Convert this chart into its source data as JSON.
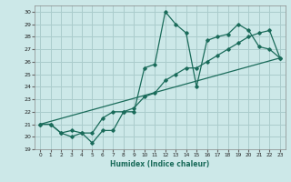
{
  "xlabel": "Humidex (Indice chaleur)",
  "ylabel": "",
  "xlim": [
    -0.5,
    23.5
  ],
  "ylim": [
    19,
    30.5
  ],
  "yticks": [
    19,
    20,
    21,
    22,
    23,
    24,
    25,
    26,
    27,
    28,
    29,
    30
  ],
  "xticks": [
    0,
    1,
    2,
    3,
    4,
    5,
    6,
    7,
    8,
    9,
    10,
    11,
    12,
    13,
    14,
    15,
    16,
    17,
    18,
    19,
    20,
    21,
    22,
    23
  ],
  "bg_color": "#cce8e8",
  "grid_color": "#aacccc",
  "line_color": "#1a6b5a",
  "line1_x": [
    0,
    1,
    2,
    3,
    4,
    5,
    6,
    7,
    8,
    9,
    10,
    11,
    12,
    13,
    14,
    15,
    16,
    17,
    18,
    19,
    20,
    21,
    22,
    23
  ],
  "line1_y": [
    21.0,
    21.0,
    20.3,
    20.0,
    20.3,
    19.5,
    20.5,
    20.5,
    22.0,
    22.0,
    25.5,
    25.8,
    30.0,
    29.0,
    28.3,
    24.0,
    27.7,
    28.0,
    28.2,
    29.0,
    28.5,
    27.2,
    27.0,
    26.3
  ],
  "line2_x": [
    0,
    1,
    2,
    3,
    4,
    5,
    6,
    7,
    8,
    9,
    10,
    11,
    12,
    13,
    14,
    15,
    16,
    17,
    18,
    19,
    20,
    21,
    22,
    23
  ],
  "line2_y": [
    21.0,
    21.0,
    20.3,
    20.5,
    20.3,
    20.3,
    21.5,
    22.0,
    22.0,
    22.3,
    23.2,
    23.5,
    24.5,
    25.0,
    25.5,
    25.5,
    26.0,
    26.5,
    27.0,
    27.5,
    28.0,
    28.3,
    28.5,
    26.3
  ],
  "line3_x": [
    0,
    23
  ],
  "line3_y": [
    21.0,
    26.3
  ]
}
